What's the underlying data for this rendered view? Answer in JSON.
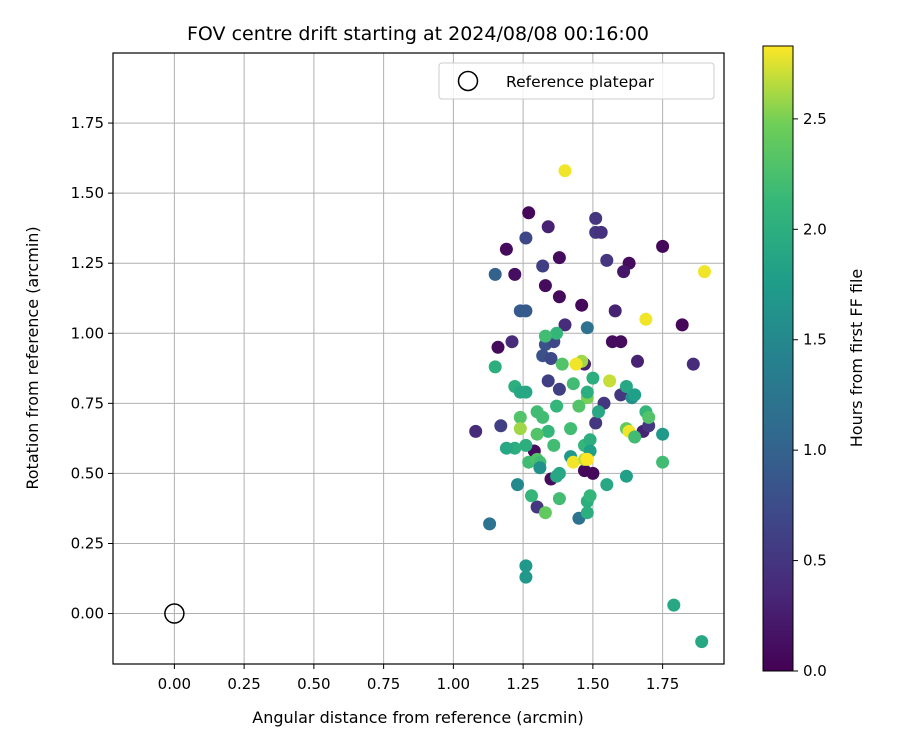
{
  "chart_data": {
    "type": "scatter",
    "title": "FOV centre drift starting at 2024/08/08 00:16:00",
    "xlabel": "Angular distance from reference (arcmin)",
    "ylabel": "Rotation from reference (arcmin)",
    "xlim": [
      -0.22,
      1.97
    ],
    "ylim": [
      -0.18,
      2.0
    ],
    "xticks": [
      0.0,
      0.25,
      0.5,
      0.75,
      1.0,
      1.25,
      1.5,
      1.75
    ],
    "yticks": [
      0.0,
      0.25,
      0.5,
      0.75,
      1.0,
      1.25,
      1.5,
      1.75
    ],
    "grid": true,
    "legend": {
      "placement": "top-right",
      "entries": [
        "Reference platepar"
      ]
    },
    "reference_point": {
      "x": 0.0,
      "y": 0.0
    },
    "colorbar": {
      "label": "Hours from first FF file",
      "colormap": "viridis",
      "range": [
        0.0,
        2.83
      ],
      "ticks": [
        0.0,
        0.5,
        1.0,
        1.5,
        2.0,
        2.5
      ]
    },
    "points": [
      [
        1.27,
        1.43,
        0.05
      ],
      [
        1.19,
        1.3,
        0.1
      ],
      [
        1.22,
        1.21,
        0.12
      ],
      [
        1.16,
        0.95,
        0.08
      ],
      [
        1.34,
        1.38,
        0.3
      ],
      [
        1.38,
        1.27,
        0.1
      ],
      [
        1.33,
        1.17,
        0.1
      ],
      [
        1.38,
        1.13,
        0.08
      ],
      [
        1.46,
        1.1,
        0.05
      ],
      [
        1.51,
        1.41,
        0.5
      ],
      [
        1.51,
        1.36,
        0.5
      ],
      [
        1.53,
        1.36,
        0.45
      ],
      [
        1.55,
        1.26,
        0.5
      ],
      [
        1.63,
        1.25,
        0.1
      ],
      [
        1.61,
        1.22,
        0.2
      ],
      [
        1.75,
        1.31,
        0.05
      ],
      [
        1.82,
        1.03,
        0.05
      ],
      [
        1.86,
        0.89,
        0.4
      ],
      [
        1.58,
        1.08,
        0.3
      ],
      [
        1.57,
        0.97,
        0.1
      ],
      [
        1.6,
        0.97,
        0.1
      ],
      [
        1.66,
        0.9,
        0.3
      ],
      [
        1.4,
        1.03,
        0.4
      ],
      [
        1.21,
        0.97,
        0.4
      ],
      [
        1.08,
        0.65,
        0.4
      ],
      [
        1.17,
        0.67,
        0.6
      ],
      [
        1.32,
        1.24,
        0.6
      ],
      [
        1.26,
        1.34,
        0.7
      ],
      [
        1.15,
        1.21,
        1.0
      ],
      [
        1.24,
        1.08,
        0.9
      ],
      [
        1.26,
        1.08,
        0.9
      ],
      [
        1.48,
        1.02,
        1.2
      ],
      [
        1.33,
        0.96,
        0.8
      ],
      [
        1.32,
        0.92,
        0.8
      ],
      [
        1.35,
        0.91,
        0.7
      ],
      [
        1.36,
        0.97,
        0.7
      ],
      [
        1.34,
        0.83,
        0.6
      ],
      [
        1.38,
        0.8,
        0.6
      ],
      [
        1.47,
        0.89,
        0.3
      ],
      [
        1.54,
        0.75,
        0.5
      ],
      [
        1.6,
        0.78,
        0.5
      ],
      [
        1.68,
        0.65,
        0.3
      ],
      [
        1.7,
        0.67,
        0.5
      ],
      [
        1.51,
        0.68,
        0.5
      ],
      [
        1.5,
        0.5,
        0.05
      ],
      [
        1.47,
        0.51,
        0.05
      ],
      [
        1.35,
        0.48,
        0.1
      ],
      [
        1.29,
        0.58,
        0.1
      ],
      [
        1.3,
        0.38,
        0.5
      ],
      [
        1.13,
        0.32,
        1.2
      ],
      [
        1.45,
        0.34,
        1.2
      ],
      [
        1.22,
        0.81,
        2.0
      ],
      [
        1.24,
        0.79,
        1.9
      ],
      [
        1.26,
        0.79,
        1.9
      ],
      [
        1.15,
        0.88,
        2.0
      ],
      [
        1.37,
        1.0,
        2.1
      ],
      [
        1.33,
        0.99,
        2.2
      ],
      [
        1.43,
        0.82,
        2.2
      ],
      [
        1.39,
        0.89,
        2.3
      ],
      [
        1.37,
        0.74,
        2.1
      ],
      [
        1.3,
        0.72,
        2.2
      ],
      [
        1.32,
        0.7,
        2.2
      ],
      [
        1.34,
        0.65,
        2.1
      ],
      [
        1.36,
        0.6,
        2.2
      ],
      [
        1.24,
        0.7,
        2.3
      ],
      [
        1.24,
        0.66,
        2.6
      ],
      [
        1.22,
        0.59,
        2.0
      ],
      [
        1.19,
        0.59,
        1.9
      ],
      [
        1.26,
        0.6,
        2.0
      ],
      [
        1.27,
        0.54,
        2.2
      ],
      [
        1.3,
        0.55,
        2.3
      ],
      [
        1.31,
        0.54,
        2.2
      ],
      [
        1.31,
        0.52,
        1.6
      ],
      [
        1.3,
        0.64,
        2.3
      ],
      [
        1.42,
        0.66,
        2.2
      ],
      [
        1.47,
        0.6,
        2.1
      ],
      [
        1.49,
        0.62,
        2.0
      ],
      [
        1.49,
        0.58,
        1.8
      ],
      [
        1.42,
        0.56,
        1.7
      ],
      [
        1.43,
        0.54,
        2.8
      ],
      [
        1.47,
        0.55,
        2.7
      ],
      [
        1.48,
        0.55,
        2.9
      ],
      [
        1.37,
        0.49,
        1.9
      ],
      [
        1.38,
        0.5,
        1.9
      ],
      [
        1.28,
        0.42,
        2.1
      ],
      [
        1.33,
        0.36,
        2.4
      ],
      [
        1.38,
        0.41,
        2.2
      ],
      [
        1.48,
        0.4,
        2.0
      ],
      [
        1.49,
        0.42,
        2.1
      ],
      [
        1.48,
        0.36,
        2.0
      ],
      [
        1.55,
        0.46,
        1.9
      ],
      [
        1.62,
        0.49,
        1.8
      ],
      [
        1.23,
        0.46,
        1.5
      ],
      [
        1.26,
        0.17,
        1.7
      ],
      [
        1.26,
        0.13,
        1.7
      ],
      [
        1.46,
        0.9,
        2.6
      ],
      [
        1.44,
        0.89,
        2.8
      ],
      [
        1.56,
        0.83,
        2.7
      ],
      [
        1.48,
        0.77,
        2.5
      ],
      [
        1.5,
        0.84,
        2.0
      ],
      [
        1.48,
        0.79,
        2.0
      ],
      [
        1.52,
        0.72,
        1.9
      ],
      [
        1.45,
        0.74,
        2.3
      ],
      [
        1.62,
        0.81,
        1.9
      ],
      [
        1.64,
        0.77,
        1.6
      ],
      [
        1.65,
        0.78,
        1.8
      ],
      [
        1.62,
        0.66,
        2.4
      ],
      [
        1.63,
        0.65,
        2.8
      ],
      [
        1.65,
        0.63,
        2.2
      ],
      [
        1.69,
        0.72,
        2.1
      ],
      [
        1.7,
        0.7,
        2.3
      ],
      [
        1.75,
        0.64,
        1.7
      ],
      [
        1.75,
        0.54,
        2.2
      ],
      [
        1.69,
        1.05,
        2.8
      ],
      [
        1.9,
        1.22,
        2.8
      ],
      [
        1.4,
        1.58,
        2.8
      ],
      [
        1.79,
        0.03,
        1.9
      ],
      [
        1.89,
        -0.1,
        1.9
      ]
    ]
  }
}
